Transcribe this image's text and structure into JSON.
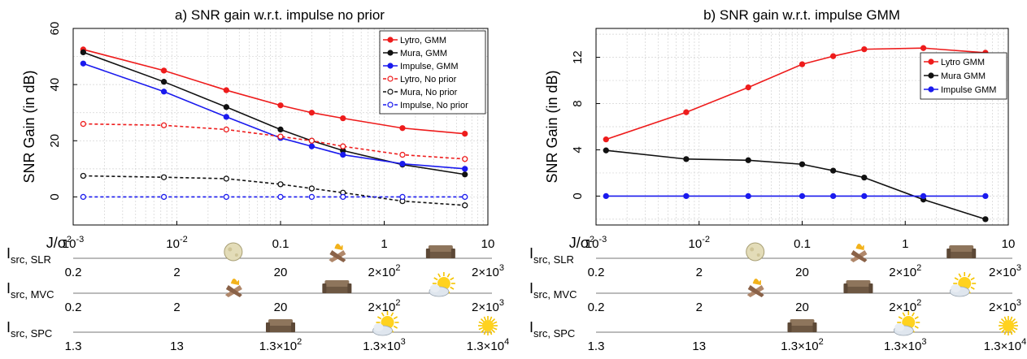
{
  "panels": [
    {
      "title": "a) SNR gain w.r.t. impulse no prior",
      "ylabel": "SNR Gain (in dB)",
      "legend_position": "top-right",
      "xticks": [
        {
          "value": 0.001,
          "base": "10",
          "exp": "-3",
          "plain": ""
        },
        {
          "value": 0.01,
          "base": "10",
          "exp": "-2",
          "plain": ""
        },
        {
          "value": 0.1,
          "base": "",
          "exp": "",
          "plain": "0.1"
        },
        {
          "value": 1,
          "base": "",
          "exp": "",
          "plain": "1"
        },
        {
          "value": 10,
          "base": "",
          "exp": "",
          "plain": "10"
        }
      ],
      "yticks": [
        "0",
        "20",
        "40",
        "60"
      ],
      "rows": [
        {
          "label": "I",
          "sub": "src, SLR",
          "values": [
            {
              "x": 0.001,
              "base": "0.2",
              "exp": ""
            },
            {
              "x": 0.01,
              "base": "2",
              "exp": ""
            },
            {
              "x": 0.1,
              "base": "20",
              "exp": ""
            },
            {
              "x": 1,
              "base": "2×10",
              "exp": "2"
            },
            {
              "x": 10,
              "base": "2×10",
              "exp": "3"
            }
          ],
          "icons": [
            {
              "x": 0.035,
              "name": "moon-icon"
            },
            {
              "x": 0.35,
              "name": "campfire-icon"
            },
            {
              "x": 3.5,
              "name": "sofa-icon"
            }
          ]
        },
        {
          "label": "I",
          "sub": "src, MVC",
          "values": [
            {
              "x": 0.001,
              "base": "0.2",
              "exp": ""
            },
            {
              "x": 0.01,
              "base": "2",
              "exp": ""
            },
            {
              "x": 0.1,
              "base": "20",
              "exp": ""
            },
            {
              "x": 1,
              "base": "2×10",
              "exp": "2"
            },
            {
              "x": 10,
              "base": "2×10",
              "exp": "3"
            }
          ],
          "icons": [
            {
              "x": 0.035,
              "name": "campfire-icon"
            },
            {
              "x": 0.35,
              "name": "sofa-icon"
            },
            {
              "x": 3.5,
              "name": "cloudy-sun-icon"
            }
          ]
        },
        {
          "label": "I",
          "sub": "src, SPC",
          "values": [
            {
              "x": 0.001,
              "base": "1.3",
              "exp": ""
            },
            {
              "x": 0.01,
              "base": "13",
              "exp": ""
            },
            {
              "x": 0.1,
              "base": "1.3×10",
              "exp": "2"
            },
            {
              "x": 1,
              "base": "1.3×10",
              "exp": "3"
            },
            {
              "x": 10,
              "base": "1.3×10",
              "exp": "4"
            }
          ],
          "icons": [
            {
              "x": 0.1,
              "name": "sofa-icon"
            },
            {
              "x": 1,
              "name": "cloudy-sun-icon"
            },
            {
              "x": 10,
              "name": "sun-icon"
            }
          ]
        }
      ]
    },
    {
      "title": "b) SNR gain w.r.t. impulse GMM",
      "ylabel": "SNR Gain (in dB)",
      "legend_position": "top-right",
      "xticks": [
        {
          "value": 0.001,
          "base": "10",
          "exp": "-3",
          "plain": ""
        },
        {
          "value": 0.01,
          "base": "10",
          "exp": "-2",
          "plain": ""
        },
        {
          "value": 0.1,
          "base": "",
          "exp": "",
          "plain": "0.1"
        },
        {
          "value": 1,
          "base": "",
          "exp": "",
          "plain": "1"
        },
        {
          "value": 10,
          "base": "",
          "exp": "",
          "plain": "10"
        }
      ],
      "yticks": [
        "0",
        "4",
        "8",
        "12"
      ],
      "rows": [
        {
          "label": "I",
          "sub": "src, SLR",
          "values": [
            {
              "x": 0.001,
              "base": "0.2",
              "exp": ""
            },
            {
              "x": 0.01,
              "base": "2",
              "exp": ""
            },
            {
              "x": 0.1,
              "base": "20",
              "exp": ""
            },
            {
              "x": 1,
              "base": "2×10",
              "exp": "2"
            },
            {
              "x": 10,
              "base": "2×10",
              "exp": "3"
            }
          ],
          "icons": [
            {
              "x": 0.035,
              "name": "moon-icon"
            },
            {
              "x": 0.35,
              "name": "campfire-icon"
            },
            {
              "x": 3.5,
              "name": "sofa-icon"
            }
          ]
        },
        {
          "label": "I",
          "sub": "src, MVC",
          "values": [
            {
              "x": 0.001,
              "base": "0.2",
              "exp": ""
            },
            {
              "x": 0.01,
              "base": "2",
              "exp": ""
            },
            {
              "x": 0.1,
              "base": "20",
              "exp": ""
            },
            {
              "x": 1,
              "base": "2×10",
              "exp": "2"
            },
            {
              "x": 10,
              "base": "2×10",
              "exp": "3"
            }
          ],
          "icons": [
            {
              "x": 0.035,
              "name": "campfire-icon"
            },
            {
              "x": 0.35,
              "name": "sofa-icon"
            },
            {
              "x": 3.5,
              "name": "cloudy-sun-icon"
            }
          ]
        },
        {
          "label": "I",
          "sub": "src, SPC",
          "values": [
            {
              "x": 0.001,
              "base": "1.3",
              "exp": ""
            },
            {
              "x": 0.01,
              "base": "13",
              "exp": ""
            },
            {
              "x": 0.1,
              "base": "1.3×10",
              "exp": "2"
            },
            {
              "x": 1,
              "base": "1.3×10",
              "exp": "3"
            },
            {
              "x": 10,
              "base": "1.3×10",
              "exp": "4"
            }
          ],
          "icons": [
            {
              "x": 0.1,
              "name": "sofa-icon"
            },
            {
              "x": 1,
              "name": "cloudy-sun-icon"
            },
            {
              "x": 10,
              "name": "sun-icon"
            }
          ]
        }
      ]
    }
  ],
  "xaxis_label": {
    "base": "J/σ",
    "exp": "2"
  },
  "colors": {
    "lytro": "#ee1c1c",
    "mura": "#111111",
    "impulse": "#1a1aee",
    "grid": "#cccccc"
  },
  "chart_data": [
    {
      "type": "line",
      "title": "a) SNR gain w.r.t. impulse no prior",
      "xlabel": "J/σ2",
      "ylabel": "SNR Gain (in dB)",
      "xscale": "log",
      "xlim": [
        0.001,
        10
      ],
      "ylim": [
        -10,
        60
      ],
      "grid": true,
      "legend": "top-right",
      "x": [
        0.00125,
        0.0075,
        0.03,
        0.1,
        0.2,
        0.4,
        1.5,
        6
      ],
      "series": [
        {
          "name": "Lytro, GMM",
          "color": "#ee1c1c",
          "dash": false,
          "values": [
            52.5,
            45,
            38,
            32.6,
            30,
            28,
            24.5,
            22.5
          ]
        },
        {
          "name": "Mura, GMM",
          "color": "#111111",
          "dash": false,
          "values": [
            51.5,
            41,
            32,
            24,
            20,
            16.5,
            11.5,
            8
          ]
        },
        {
          "name": "Impulse, GMM",
          "color": "#1a1aee",
          "dash": false,
          "values": [
            47.5,
            37.5,
            28.5,
            21,
            18,
            15,
            11.8,
            10
          ]
        },
        {
          "name": "Lytro, No prior",
          "color": "#ee1c1c",
          "dash": true,
          "values": [
            26,
            25.5,
            24,
            21.5,
            20,
            18,
            15,
            13.5
          ]
        },
        {
          "name": "Mura, No prior",
          "color": "#111111",
          "dash": true,
          "values": [
            7.5,
            7,
            6.5,
            4.5,
            3,
            1.5,
            -1.5,
            -3
          ]
        },
        {
          "name": "Impulse, No prior",
          "color": "#1a1aee",
          "dash": true,
          "values": [
            0,
            0,
            0,
            0,
            0,
            0,
            0,
            0
          ]
        }
      ]
    },
    {
      "type": "line",
      "title": "b) SNR gain w.r.t. impulse GMM",
      "xlabel": "J/σ2",
      "ylabel": "SNR Gain (in dB)",
      "xscale": "log",
      "xlim": [
        0.001,
        10
      ],
      "ylim": [
        -2.5,
        14.5
      ],
      "grid": true,
      "legend": "top-right",
      "x": [
        0.00125,
        0.0075,
        0.03,
        0.1,
        0.2,
        0.4,
        1.5,
        6
      ],
      "series": [
        {
          "name": "Lytro GMM",
          "color": "#ee1c1c",
          "dash": false,
          "values": [
            4.9,
            7.25,
            9.4,
            11.4,
            12.1,
            12.7,
            12.8,
            12.4
          ]
        },
        {
          "name": "Mura GMM",
          "color": "#111111",
          "dash": false,
          "values": [
            3.95,
            3.2,
            3.1,
            2.75,
            2.2,
            1.6,
            -0.3,
            -2.0
          ]
        },
        {
          "name": "Impulse GMM",
          "color": "#1a1aee",
          "dash": false,
          "values": [
            0,
            0,
            0,
            0,
            0,
            0,
            0,
            0
          ]
        }
      ]
    }
  ]
}
